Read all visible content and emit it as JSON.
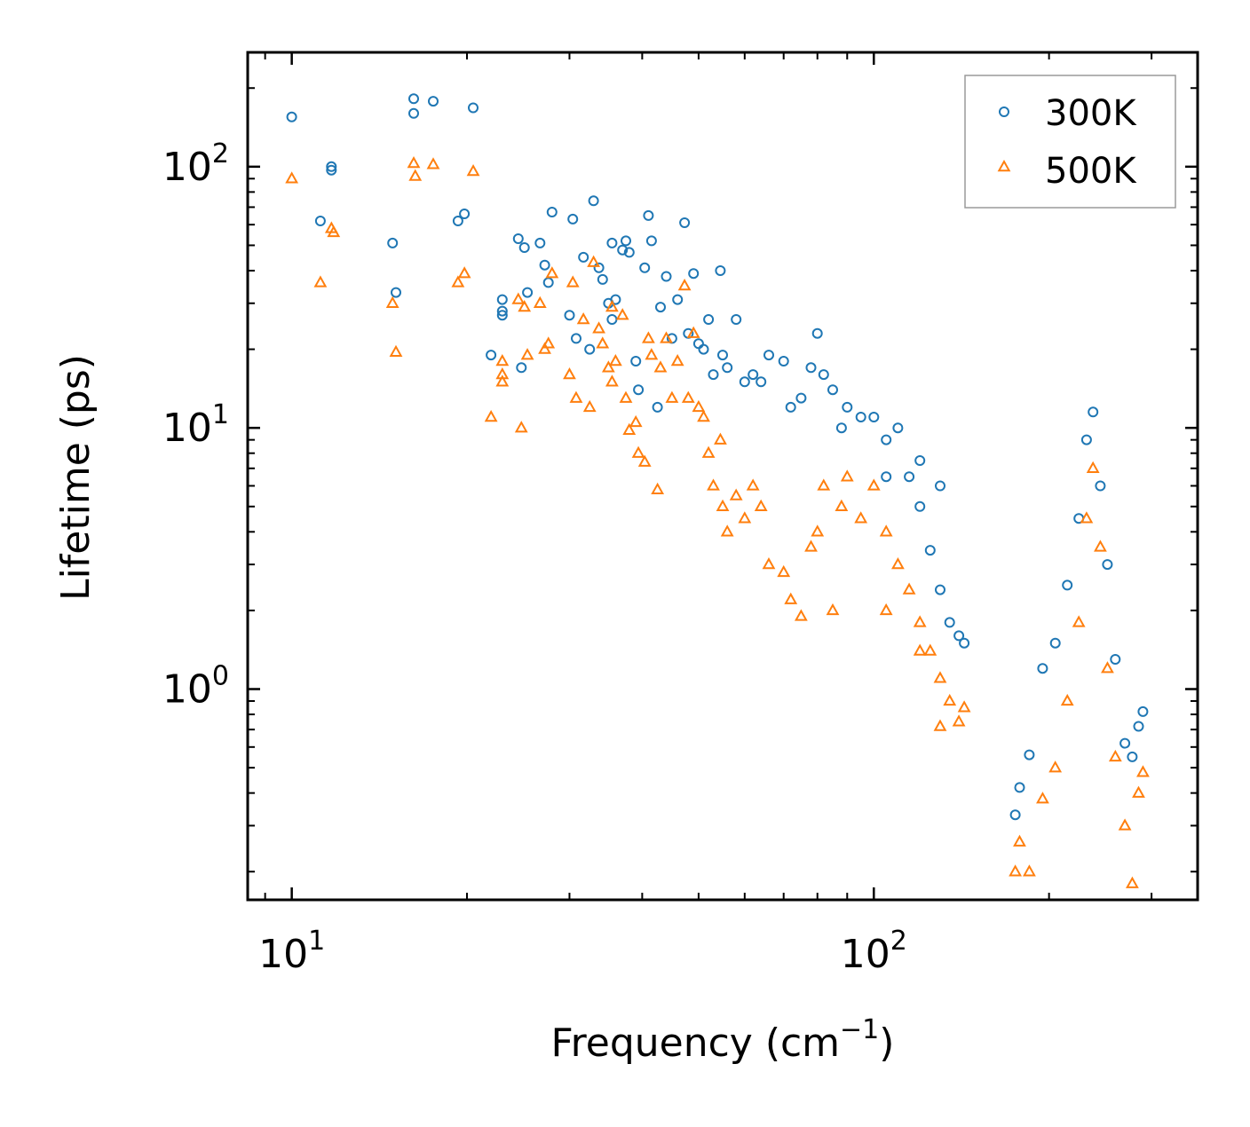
{
  "chart_data": {
    "type": "scatter",
    "title": "",
    "xlabel": {
      "base": "Frequency (cm",
      "sup": "−1",
      "tail": ")"
    },
    "ylabel": "Lifetime (ps)",
    "xscale": "log",
    "yscale": "log",
    "xlim": [
      8.4,
      360
    ],
    "ylim": [
      0.156,
      274
    ],
    "x_ticks": [
      {
        "base": "10",
        "exp": "1",
        "value": 10
      },
      {
        "base": "10",
        "exp": "2",
        "value": 100
      }
    ],
    "y_ticks": [
      {
        "base": "10",
        "exp": "0",
        "value": 1
      },
      {
        "base": "10",
        "exp": "1",
        "value": 10
      },
      {
        "base": "10",
        "exp": "2",
        "value": 100
      }
    ],
    "legend_position": "top-right",
    "series": [
      {
        "name": "300K",
        "marker": "circle",
        "color": "#1f77b4",
        "points": [
          [
            10.0,
            155
          ],
          [
            11.2,
            62
          ],
          [
            11.7,
            100
          ],
          [
            11.7,
            97
          ],
          [
            14.9,
            51
          ],
          [
            15.1,
            33
          ],
          [
            16.2,
            182
          ],
          [
            16.2,
            160
          ],
          [
            17.5,
            178
          ],
          [
            19.3,
            62
          ],
          [
            19.8,
            66
          ],
          [
            20.5,
            168
          ],
          [
            22.0,
            19
          ],
          [
            23.0,
            31
          ],
          [
            23.0,
            28
          ],
          [
            23.0,
            27
          ],
          [
            24.5,
            53
          ],
          [
            24.8,
            17
          ],
          [
            25.1,
            49
          ],
          [
            25.4,
            33
          ],
          [
            26.7,
            51
          ],
          [
            27.2,
            42
          ],
          [
            27.6,
            36
          ],
          [
            28.0,
            67
          ],
          [
            30.0,
            27
          ],
          [
            30.4,
            63
          ],
          [
            30.8,
            22
          ],
          [
            31.7,
            45
          ],
          [
            32.5,
            20
          ],
          [
            33.0,
            74
          ],
          [
            33.7,
            41
          ],
          [
            34.2,
            37
          ],
          [
            35.0,
            30
          ],
          [
            35.5,
            51
          ],
          [
            35.5,
            26
          ],
          [
            36.0,
            31
          ],
          [
            37.0,
            48
          ],
          [
            37.5,
            52
          ],
          [
            38.0,
            47
          ],
          [
            39.0,
            18
          ],
          [
            39.4,
            14
          ],
          [
            40.4,
            41
          ],
          [
            41.0,
            65
          ],
          [
            41.5,
            52
          ],
          [
            42.5,
            12
          ],
          [
            43.0,
            29
          ],
          [
            44.0,
            38
          ],
          [
            45.0,
            22
          ],
          [
            46.0,
            31
          ],
          [
            47.3,
            61
          ],
          [
            48.0,
            23
          ],
          [
            49.0,
            39
          ],
          [
            50.0,
            21
          ],
          [
            51.0,
            20
          ],
          [
            52.0,
            26
          ],
          [
            53.0,
            16
          ],
          [
            54.5,
            40
          ],
          [
            55.0,
            19
          ],
          [
            56.0,
            17
          ],
          [
            58.0,
            26
          ],
          [
            60.0,
            15
          ],
          [
            62.0,
            16
          ],
          [
            64.0,
            15
          ],
          [
            66.0,
            19
          ],
          [
            70.0,
            18
          ],
          [
            72.0,
            12
          ],
          [
            75.0,
            13
          ],
          [
            78.0,
            17
          ],
          [
            80.0,
            23
          ],
          [
            82.0,
            16
          ],
          [
            85.0,
            14
          ],
          [
            88.0,
            10
          ],
          [
            90.0,
            12
          ],
          [
            95.0,
            11
          ],
          [
            100.0,
            11
          ],
          [
            105.0,
            9.0
          ],
          [
            110.0,
            10.0
          ],
          [
            115.0,
            6.5
          ],
          [
            120.0,
            5.0
          ],
          [
            125.0,
            3.4
          ],
          [
            130.0,
            2.4
          ],
          [
            135.0,
            1.8
          ],
          [
            140.0,
            1.6
          ],
          [
            143.0,
            1.5
          ],
          [
            130.0,
            6.0
          ],
          [
            120.0,
            7.5
          ],
          [
            105.0,
            6.5
          ],
          [
            175.0,
            0.33
          ],
          [
            178.0,
            0.42
          ],
          [
            185.0,
            0.56
          ],
          [
            195.0,
            1.2
          ],
          [
            205.0,
            1.5
          ],
          [
            215.0,
            2.5
          ],
          [
            225.0,
            4.5
          ],
          [
            232.0,
            9.0
          ],
          [
            238.0,
            11.5
          ],
          [
            245.0,
            6.0
          ],
          [
            252.0,
            3.0
          ],
          [
            260.0,
            1.3
          ],
          [
            270.0,
            0.62
          ],
          [
            278.0,
            0.55
          ],
          [
            285.0,
            0.72
          ],
          [
            290.0,
            0.82
          ]
        ]
      },
      {
        "name": "500K",
        "marker": "triangle",
        "color": "#ff7f0e",
        "points": [
          [
            10.0,
            90
          ],
          [
            11.2,
            36
          ],
          [
            11.7,
            58
          ],
          [
            11.8,
            56
          ],
          [
            14.9,
            30
          ],
          [
            15.1,
            19.5
          ],
          [
            16.2,
            103
          ],
          [
            16.3,
            92
          ],
          [
            17.5,
            102
          ],
          [
            19.3,
            36
          ],
          [
            19.8,
            39
          ],
          [
            20.5,
            96
          ],
          [
            22.0,
            11
          ],
          [
            23.0,
            18
          ],
          [
            23.0,
            16
          ],
          [
            23.0,
            15
          ],
          [
            24.5,
            31
          ],
          [
            24.8,
            10
          ],
          [
            25.1,
            29
          ],
          [
            25.4,
            19
          ],
          [
            26.7,
            30
          ],
          [
            27.2,
            20
          ],
          [
            27.6,
            21
          ],
          [
            28.0,
            39
          ],
          [
            30.0,
            16
          ],
          [
            30.4,
            36
          ],
          [
            30.8,
            13
          ],
          [
            31.7,
            26
          ],
          [
            32.5,
            12
          ],
          [
            33.0,
            43
          ],
          [
            33.7,
            24
          ],
          [
            34.2,
            21
          ],
          [
            35.0,
            17
          ],
          [
            35.5,
            29
          ],
          [
            35.5,
            15
          ],
          [
            36.0,
            18
          ],
          [
            37.0,
            27
          ],
          [
            37.5,
            13
          ],
          [
            38.0,
            9.8
          ],
          [
            39.0,
            10.5
          ],
          [
            39.4,
            8.0
          ],
          [
            40.4,
            7.4
          ],
          [
            41.0,
            22
          ],
          [
            41.5,
            19
          ],
          [
            42.5,
            5.8
          ],
          [
            43.0,
            17
          ],
          [
            44.0,
            22
          ],
          [
            45.0,
            13
          ],
          [
            46.0,
            18
          ],
          [
            47.3,
            35
          ],
          [
            48.0,
            13
          ],
          [
            49.0,
            23
          ],
          [
            50.0,
            12
          ],
          [
            51.0,
            11
          ],
          [
            52.0,
            8.0
          ],
          [
            53.0,
            6.0
          ],
          [
            54.5,
            9.0
          ],
          [
            55.0,
            5.0
          ],
          [
            56.0,
            4.0
          ],
          [
            58.0,
            5.5
          ],
          [
            60.0,
            4.5
          ],
          [
            62.0,
            6.0
          ],
          [
            64.0,
            5.0
          ],
          [
            66.0,
            3.0
          ],
          [
            70.0,
            2.8
          ],
          [
            72.0,
            2.2
          ],
          [
            75.0,
            1.9
          ],
          [
            78.0,
            3.5
          ],
          [
            80.0,
            4.0
          ],
          [
            82.0,
            6.0
          ],
          [
            85.0,
            2.0
          ],
          [
            88.0,
            5.0
          ],
          [
            90.0,
            6.5
          ],
          [
            95.0,
            4.5
          ],
          [
            100.0,
            6.0
          ],
          [
            105.0,
            4.0
          ],
          [
            110.0,
            3.0
          ],
          [
            115.0,
            2.4
          ],
          [
            120.0,
            1.8
          ],
          [
            125.0,
            1.4
          ],
          [
            130.0,
            1.1
          ],
          [
            135.0,
            0.9
          ],
          [
            140.0,
            0.75
          ],
          [
            143.0,
            0.85
          ],
          [
            130.0,
            0.72
          ],
          [
            120.0,
            1.4
          ],
          [
            105.0,
            2.0
          ],
          [
            175.0,
            0.2
          ],
          [
            178.0,
            0.26
          ],
          [
            185.0,
            0.2
          ],
          [
            195.0,
            0.38
          ],
          [
            205.0,
            0.5
          ],
          [
            215.0,
            0.9
          ],
          [
            225.0,
            1.8
          ],
          [
            232.0,
            4.5
          ],
          [
            238.0,
            7.0
          ],
          [
            245.0,
            3.5
          ],
          [
            252.0,
            1.2
          ],
          [
            260.0,
            0.55
          ],
          [
            270.0,
            0.3
          ],
          [
            278.0,
            0.18
          ],
          [
            285.0,
            0.4
          ],
          [
            290.0,
            0.48
          ]
        ]
      }
    ]
  }
}
